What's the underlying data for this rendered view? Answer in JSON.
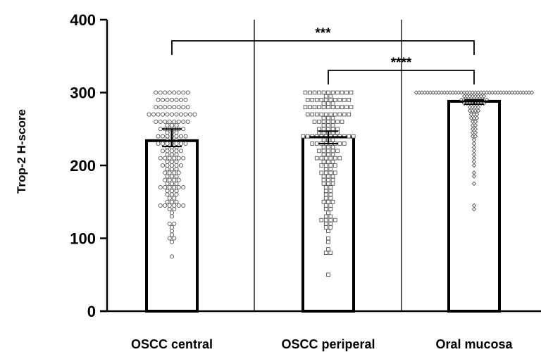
{
  "chart_data": {
    "type": "bar",
    "xlabel": "",
    "ylabel": "Trop-2 H-score",
    "ylim": [
      0,
      400
    ],
    "yticks": [
      "0",
      "100",
      "200",
      "300",
      "400"
    ],
    "grid": false,
    "categories": [
      "OSCC central",
      "OSCC periperal",
      "Oral mucosa"
    ],
    "values": [
      234,
      239,
      288
    ],
    "error": [
      {
        "low": 226,
        "high": 250
      },
      {
        "low": 230,
        "high": 247
      },
      {
        "low": 284,
        "high": 290
      }
    ],
    "marker_shapes": [
      "circle",
      "square",
      "diamond"
    ],
    "points": [
      [
        300,
        300,
        300,
        300,
        300,
        300,
        300,
        300,
        290,
        290,
        290,
        290,
        290,
        290,
        290,
        280,
        280,
        280,
        280,
        280,
        280,
        280,
        280,
        270,
        270,
        270,
        270,
        270,
        270,
        270,
        270,
        270,
        270,
        270,
        260,
        260,
        260,
        260,
        260,
        260,
        260,
        260,
        255,
        255,
        255,
        250,
        250,
        250,
        250,
        250,
        250,
        245,
        245,
        245,
        240,
        240,
        240,
        240,
        240,
        240,
        240,
        235,
        235,
        235,
        230,
        230,
        230,
        230,
        230,
        230,
        230,
        225,
        225,
        225,
        220,
        220,
        220,
        220,
        220,
        215,
        215,
        215,
        210,
        210,
        210,
        210,
        210,
        210,
        205,
        205,
        205,
        200,
        200,
        200,
        200,
        200,
        195,
        195,
        195,
        190,
        190,
        190,
        190,
        185,
        185,
        185,
        180,
        180,
        180,
        180,
        175,
        175,
        175,
        170,
        170,
        170,
        170,
        170,
        170,
        165,
        165,
        165,
        160,
        160,
        160,
        155,
        155,
        150,
        150,
        150,
        145,
        145,
        145,
        145,
        145,
        145,
        140,
        140,
        135,
        130,
        120,
        120,
        115,
        110,
        105,
        100,
        100,
        95,
        75
      ],
      [
        300,
        300,
        300,
        300,
        300,
        300,
        300,
        300,
        300,
        300,
        300,
        295,
        295,
        290,
        290,
        290,
        290,
        290,
        290,
        290,
        290,
        290,
        290,
        285,
        285,
        285,
        280,
        280,
        280,
        280,
        280,
        280,
        280,
        280,
        280,
        280,
        280,
        270,
        270,
        270,
        270,
        270,
        270,
        270,
        270,
        270,
        270,
        265,
        265,
        265,
        260,
        260,
        260,
        260,
        260,
        260,
        260,
        255,
        255,
        255,
        250,
        250,
        250,
        250,
        250,
        245,
        245,
        245,
        245,
        245,
        240,
        240,
        240,
        240,
        240,
        240,
        240,
        240,
        240,
        240,
        240,
        240,
        235,
        235,
        235,
        230,
        230,
        230,
        230,
        230,
        230,
        230,
        230,
        225,
        225,
        225,
        220,
        220,
        220,
        220,
        220,
        215,
        215,
        215,
        210,
        210,
        210,
        210,
        210,
        210,
        205,
        205,
        205,
        200,
        200,
        200,
        200,
        195,
        195,
        190,
        190,
        190,
        190,
        185,
        185,
        185,
        180,
        180,
        180,
        175,
        175,
        175,
        170,
        170,
        165,
        165,
        160,
        160,
        155,
        155,
        150,
        150,
        150,
        145,
        145,
        140,
        140,
        135,
        130,
        130,
        125,
        125,
        125,
        125,
        120,
        120,
        115,
        115,
        110,
        100,
        95,
        85,
        80,
        80,
        50
      ],
      [
        300,
        300,
        300,
        300,
        300,
        300,
        300,
        300,
        300,
        300,
        300,
        300,
        300,
        300,
        300,
        300,
        300,
        300,
        300,
        300,
        300,
        300,
        300,
        300,
        300,
        300,
        300,
        300,
        300,
        300,
        300,
        300,
        300,
        300,
        300,
        300,
        300,
        300,
        300,
        300,
        300,
        300,
        295,
        295,
        295,
        295,
        295,
        295,
        295,
        295,
        290,
        290,
        290,
        290,
        290,
        290,
        290,
        290,
        290,
        290,
        285,
        285,
        285,
        285,
        285,
        285,
        285,
        285,
        280,
        280,
        280,
        280,
        275,
        275,
        275,
        275,
        270,
        270,
        270,
        265,
        265,
        265,
        260,
        260,
        255,
        255,
        250,
        250,
        245,
        245,
        240,
        240,
        235,
        230,
        225,
        220,
        215,
        210,
        205,
        200,
        190,
        185,
        175,
        145,
        140
      ]
    ],
    "significance": [
      {
        "from": 0,
        "to": 2,
        "label": "***"
      },
      {
        "from": 1,
        "to": 2,
        "label": "****"
      }
    ]
  }
}
